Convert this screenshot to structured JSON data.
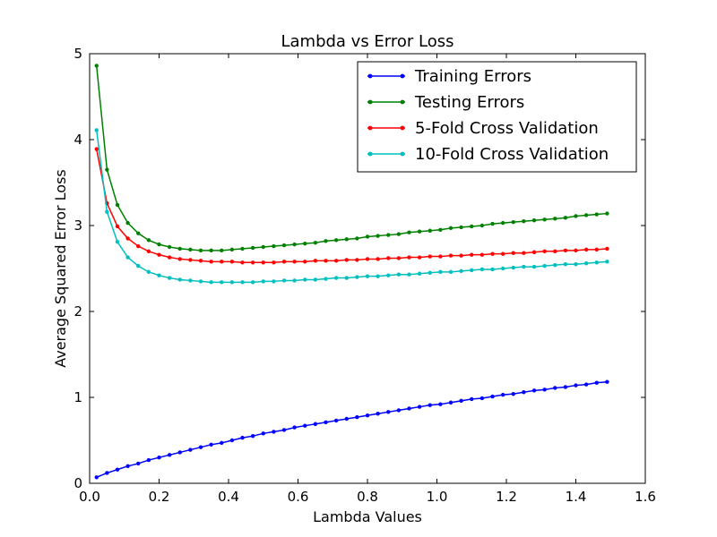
{
  "chart_data": {
    "type": "line",
    "title": "Lambda vs Error Loss",
    "xlabel": "Lambda Values",
    "ylabel": "Average Squared Error Loss",
    "xlim": [
      0,
      1.6
    ],
    "ylim": [
      0,
      5
    ],
    "xticks": [
      "0.0",
      "0.2",
      "0.4",
      "0.6",
      "0.8",
      "1.0",
      "1.2",
      "1.4",
      "1.6"
    ],
    "yticks": [
      "0",
      "1",
      "2",
      "3",
      "4",
      "5"
    ],
    "grid": false,
    "legend_position": "top-right",
    "x": [
      0.02,
      0.05,
      0.08,
      0.11,
      0.14,
      0.17,
      0.2,
      0.23,
      0.26,
      0.29,
      0.32,
      0.35,
      0.38,
      0.41,
      0.44,
      0.47,
      0.5,
      0.53,
      0.56,
      0.59,
      0.62,
      0.65,
      0.68,
      0.71,
      0.74,
      0.77,
      0.8,
      0.83,
      0.86,
      0.89,
      0.92,
      0.95,
      0.98,
      1.01,
      1.04,
      1.07,
      1.1,
      1.13,
      1.16,
      1.19,
      1.22,
      1.25,
      1.28,
      1.31,
      1.34,
      1.37,
      1.4,
      1.43,
      1.46,
      1.49
    ],
    "series": [
      {
        "name": "Training Errors",
        "color": "#0000ff",
        "values": [
          0.07,
          0.12,
          0.16,
          0.2,
          0.23,
          0.27,
          0.3,
          0.33,
          0.36,
          0.39,
          0.42,
          0.45,
          0.47,
          0.5,
          0.53,
          0.55,
          0.58,
          0.6,
          0.62,
          0.65,
          0.67,
          0.69,
          0.71,
          0.73,
          0.75,
          0.77,
          0.79,
          0.81,
          0.83,
          0.85,
          0.87,
          0.89,
          0.91,
          0.92,
          0.94,
          0.96,
          0.98,
          0.99,
          1.01,
          1.03,
          1.04,
          1.06,
          1.08,
          1.09,
          1.11,
          1.12,
          1.14,
          1.15,
          1.17,
          1.18
        ]
      },
      {
        "name": "Testing Errors",
        "color": "#008000",
        "values": [
          4.86,
          3.65,
          3.24,
          3.03,
          2.91,
          2.83,
          2.78,
          2.75,
          2.73,
          2.72,
          2.71,
          2.71,
          2.71,
          2.72,
          2.73,
          2.74,
          2.75,
          2.76,
          2.77,
          2.78,
          2.79,
          2.8,
          2.82,
          2.83,
          2.84,
          2.85,
          2.87,
          2.88,
          2.89,
          2.9,
          2.92,
          2.93,
          2.94,
          2.95,
          2.97,
          2.98,
          2.99,
          3.0,
          3.02,
          3.03,
          3.04,
          3.05,
          3.06,
          3.07,
          3.08,
          3.09,
          3.11,
          3.12,
          3.13,
          3.14
        ]
      },
      {
        "name": "5-Fold Cross Validation",
        "color": "#ff0000",
        "values": [
          3.89,
          3.26,
          2.99,
          2.85,
          2.76,
          2.7,
          2.66,
          2.63,
          2.61,
          2.6,
          2.59,
          2.58,
          2.58,
          2.58,
          2.57,
          2.57,
          2.57,
          2.57,
          2.58,
          2.58,
          2.58,
          2.59,
          2.59,
          2.59,
          2.6,
          2.6,
          2.61,
          2.61,
          2.62,
          2.62,
          2.63,
          2.63,
          2.64,
          2.64,
          2.65,
          2.65,
          2.66,
          2.66,
          2.67,
          2.67,
          2.68,
          2.68,
          2.69,
          2.7,
          2.7,
          2.71,
          2.71,
          2.72,
          2.72,
          2.73
        ]
      },
      {
        "name": "10-Fold Cross Validation",
        "color": "#00bfbf",
        "values": [
          4.11,
          3.16,
          2.81,
          2.63,
          2.53,
          2.46,
          2.42,
          2.39,
          2.37,
          2.36,
          2.35,
          2.34,
          2.34,
          2.34,
          2.34,
          2.34,
          2.35,
          2.35,
          2.36,
          2.36,
          2.37,
          2.37,
          2.38,
          2.39,
          2.39,
          2.4,
          2.41,
          2.41,
          2.42,
          2.43,
          2.43,
          2.44,
          2.45,
          2.46,
          2.46,
          2.47,
          2.48,
          2.49,
          2.49,
          2.5,
          2.51,
          2.52,
          2.52,
          2.53,
          2.54,
          2.55,
          2.55,
          2.56,
          2.57,
          2.58
        ]
      }
    ]
  }
}
